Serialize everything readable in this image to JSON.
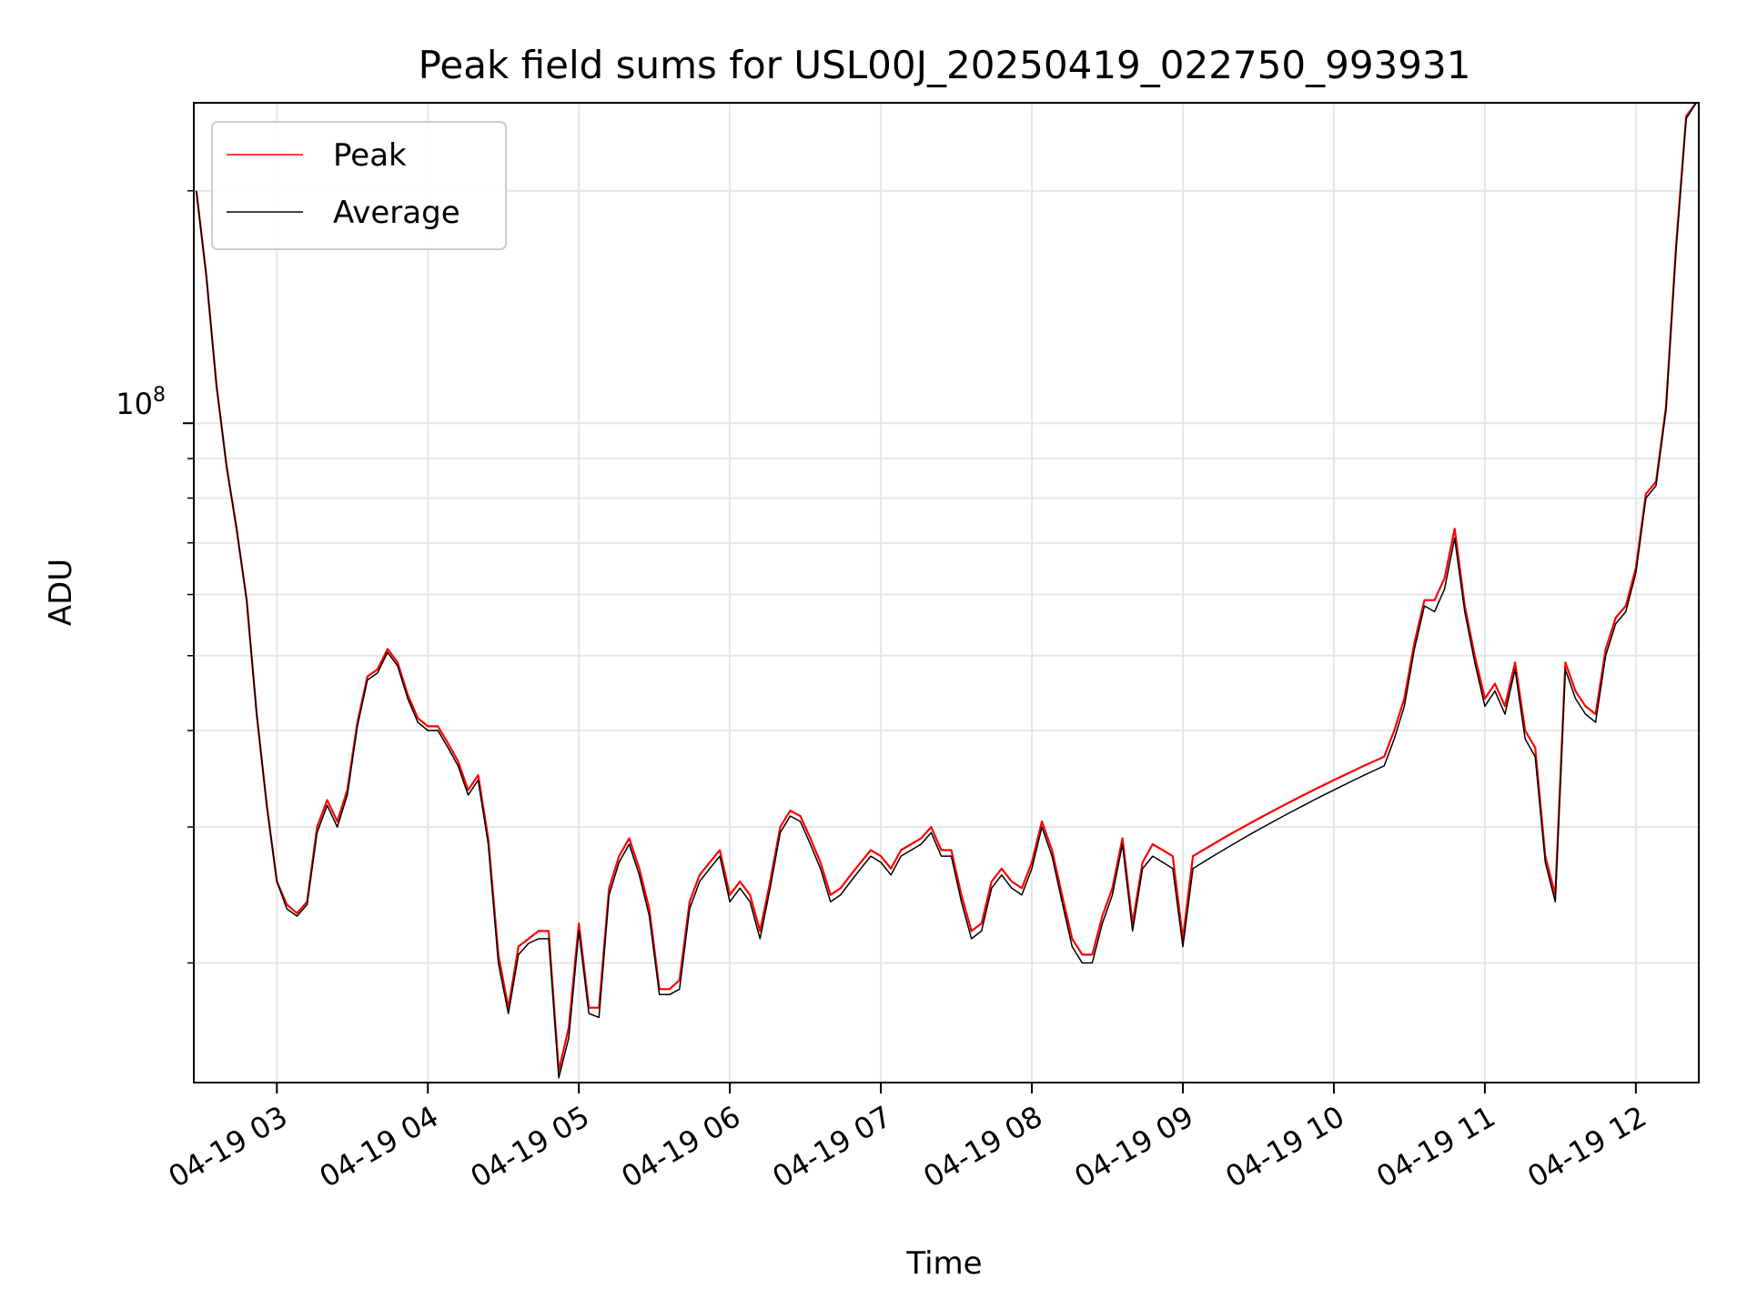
{
  "chart_data": {
    "type": "line",
    "title": "Peak field sums for USL00J_20250419_022750_993931",
    "xlabel": "Time",
    "ylabel": "ADU",
    "yscale": "log",
    "ylim": [
      14000000,
      260000000
    ],
    "xlim": [
      "04-19 02:27",
      "04-19 12:25"
    ],
    "x_ticks": [
      "04-19 03",
      "04-19 04",
      "04-19 05",
      "04-19 06",
      "04-19 07",
      "04-19 08",
      "04-19 09",
      "04-19 10",
      "04-19 11",
      "04-19 12"
    ],
    "y_tick_major": {
      "base": "10",
      "exp": "8"
    },
    "grid": true,
    "legend_position": "upper-left",
    "series_colors": {
      "Peak": "#ff0000",
      "Average": "#000000"
    },
    "x": [
      "02:28",
      "02:32",
      "02:36",
      "02:40",
      "02:44",
      "02:48",
      "02:52",
      "02:56",
      "03:00",
      "03:04",
      "03:08",
      "03:12",
      "03:16",
      "03:20",
      "03:24",
      "03:28",
      "03:32",
      "03:36",
      "03:40",
      "03:44",
      "03:48",
      "03:52",
      "03:56",
      "04:00",
      "04:04",
      "04:08",
      "04:12",
      "04:16",
      "04:20",
      "04:24",
      "04:28",
      "04:32",
      "04:36",
      "04:40",
      "04:44",
      "04:48",
      "04:52",
      "04:56",
      "05:00",
      "05:04",
      "05:08",
      "05:12",
      "05:16",
      "05:20",
      "05:24",
      "05:28",
      "05:32",
      "05:36",
      "05:40",
      "05:44",
      "05:48",
      "05:52",
      "05:56",
      "06:00",
      "06:04",
      "06:08",
      "06:12",
      "06:16",
      "06:20",
      "06:24",
      "06:28",
      "06:32",
      "06:36",
      "06:40",
      "06:44",
      "06:48",
      "06:52",
      "06:56",
      "07:00",
      "07:04",
      "07:08",
      "07:12",
      "07:16",
      "07:20",
      "07:24",
      "07:28",
      "07:32",
      "07:36",
      "07:40",
      "07:44",
      "07:48",
      "07:52",
      "07:56",
      "08:00",
      "08:04",
      "08:08",
      "08:12",
      "08:16",
      "08:20",
      "08:24",
      "08:28",
      "08:32",
      "08:36",
      "08:40",
      "08:44",
      "08:48",
      "08:52",
      "08:56",
      "09:00",
      "09:04",
      "09:08",
      "09:12",
      "09:16",
      "09:20",
      "09:24",
      "09:28",
      "09:32",
      "09:36",
      "09:40",
      "09:44",
      "09:48",
      "09:52",
      "09:56",
      "10:00",
      "10:04",
      "10:08",
      "10:12",
      "10:16",
      "10:20",
      "10:24",
      "10:28",
      "10:32",
      "10:36",
      "10:40",
      "10:44",
      "10:48",
      "10:52",
      "10:56",
      "11:00",
      "11:04",
      "11:08",
      "11:12",
      "11:16",
      "11:20",
      "11:24",
      "11:28",
      "11:32",
      "11:36",
      "11:40",
      "11:44",
      "11:48",
      "11:52",
      "11:56",
      "12:00",
      "12:04",
      "12:08",
      "12:12",
      "12:16",
      "12:20",
      "12:24"
    ],
    "series": [
      {
        "name": "Peak",
        "values": [
          200000000.0,
          155000000.0,
          112000000.0,
          88000000.0,
          73000000.0,
          59000000.0,
          42000000.0,
          32000000.0,
          25500000.0,
          23800000.0,
          23200000.0,
          24000000.0,
          30000000.0,
          32500000.0,
          30500000.0,
          33500000.0,
          41000000.0,
          47000000.0,
          48000000.0,
          51000000.0,
          49000000.0,
          44500000.0,
          41500000.0,
          40500000.0,
          40500000.0,
          38500000.0,
          36500000.0,
          33500000.0,
          35000000.0,
          29000000.0,
          20500000.0,
          17500000.0,
          21000000.0,
          21500000.0,
          22000000.0,
          22000000.0,
          14500000.0,
          16500000.0,
          22500000.0,
          17500000.0,
          17500000.0,
          25000000.0,
          27500000.0,
          29000000.0,
          26500000.0,
          23500000.0,
          18500000.0,
          18500000.0,
          19000000.0,
          24000000.0,
          26000000.0,
          27000000.0,
          28000000.0,
          24500000.0,
          25500000.0,
          24500000.0,
          22000000.0,
          25500000.0,
          30000000.0,
          31500000.0,
          31000000.0,
          29000000.0,
          27000000.0,
          24500000.0,
          25000000.0,
          26000000.0,
          27000000.0,
          28000000.0,
          27500000.0,
          26500000.0,
          28000000.0,
          28500000.0,
          29000000.0,
          30000000.0,
          28000000.0,
          28000000.0,
          24500000.0,
          22000000.0,
          22500000.0,
          25500000.0,
          26500000.0,
          25500000.0,
          25000000.0,
          27000000.0,
          30500000.0,
          28000000.0,
          24500000.0,
          21500000.0,
          20500000.0,
          20500000.0,
          23000000.0,
          25000000.0,
          29000000.0,
          22500000.0,
          27000000.0,
          28500000.0,
          28000000.0,
          27500000.0,
          21500000.0,
          27500000.0,
          28000000.0,
          28500000.0,
          29000000.0,
          29500000.0,
          30000000.0,
          30500000.0,
          31000000.0,
          31500000.0,
          32000000.0,
          32500000.0,
          33000000.0,
          33500000.0,
          34000000.0,
          34500000.0,
          35000000.0,
          35500000.0,
          36000000.0,
          36500000.0,
          37000000.0,
          40000000.0,
          44000000.0,
          52000000.0,
          59000000.0,
          59000000.0,
          63000000.0,
          73000000.0,
          58000000.0,
          50000000.0,
          44000000.0,
          46000000.0,
          43000000.0,
          49000000.0,
          40000000.0,
          38000000.0,
          27500000.0,
          24500000.0,
          49000000.0,
          45000000.0,
          43000000.0,
          42000000.0,
          51000000.0,
          56000000.0,
          58000000.0,
          65000000.0,
          81000000.0,
          84000000.0,
          105000000.0,
          170000000.0,
          250000000.0,
          260000000.0
        ]
      },
      {
        "name": "Average",
        "values": [
          200000000.0,
          155000000.0,
          112000000.0,
          88000000.0,
          73000000.0,
          59000000.0,
          42000000.0,
          32000000.0,
          25500000.0,
          23500000.0,
          23000000.0,
          23800000.0,
          29500000.0,
          32000000.0,
          30000000.0,
          33000000.0,
          40500000.0,
          46500000.0,
          47500000.0,
          50500000.0,
          48500000.0,
          44000000.0,
          41000000.0,
          40000000.0,
          40000000.0,
          38000000.0,
          36000000.0,
          33000000.0,
          34500000.0,
          28500000.0,
          20000000.0,
          17200000.0,
          20500000.0,
          21200000.0,
          21500000.0,
          21500000.0,
          14200000.0,
          16000000.0,
          22000000.0,
          17200000.0,
          17000000.0,
          24500000.0,
          27000000.0,
          28500000.0,
          26000000.0,
          23000000.0,
          18200000.0,
          18200000.0,
          18500000.0,
          23500000.0,
          25500000.0,
          26500000.0,
          27500000.0,
          24000000.0,
          25000000.0,
          24000000.0,
          21500000.0,
          25000000.0,
          29500000.0,
          31000000.0,
          30500000.0,
          28500000.0,
          26500000.0,
          24000000.0,
          24500000.0,
          25500000.0,
          26500000.0,
          27500000.0,
          27000000.0,
          26000000.0,
          27500000.0,
          28000000.0,
          28500000.0,
          29500000.0,
          27500000.0,
          27500000.0,
          24000000.0,
          21500000.0,
          22000000.0,
          25000000.0,
          26000000.0,
          25000000.0,
          24500000.0,
          26500000.0,
          30000000.0,
          27500000.0,
          24000000.0,
          21000000.0,
          20000000.0,
          20000000.0,
          22500000.0,
          24500000.0,
          28500000.0,
          22000000.0,
          26500000.0,
          27500000.0,
          27000000.0,
          26500000.0,
          21000000.0,
          26500000.0,
          27000000.0,
          27500000.0,
          28000000.0,
          28500000.0,
          29000000.0,
          29500000.0,
          30000000.0,
          30500000.0,
          31000000.0,
          31500000.0,
          32000000.0,
          32500000.0,
          33000000.0,
          33500000.0,
          34000000.0,
          34500000.0,
          35000000.0,
          35500000.0,
          36000000.0,
          39000000.0,
          43000000.0,
          51000000.0,
          58000000.0,
          57000000.0,
          61000000.0,
          71000000.0,
          57000000.0,
          49000000.0,
          43000000.0,
          45000000.0,
          42000000.0,
          48000000.0,
          39000000.0,
          37000000.0,
          27000000.0,
          24000000.0,
          48000000.0,
          44000000.0,
          42000000.0,
          41000000.0,
          50000000.0,
          55000000.0,
          57000000.0,
          64000000.0,
          80000000.0,
          83000000.0,
          104000000.0,
          168000000.0,
          248000000.0,
          260000000.0
        ]
      }
    ]
  }
}
